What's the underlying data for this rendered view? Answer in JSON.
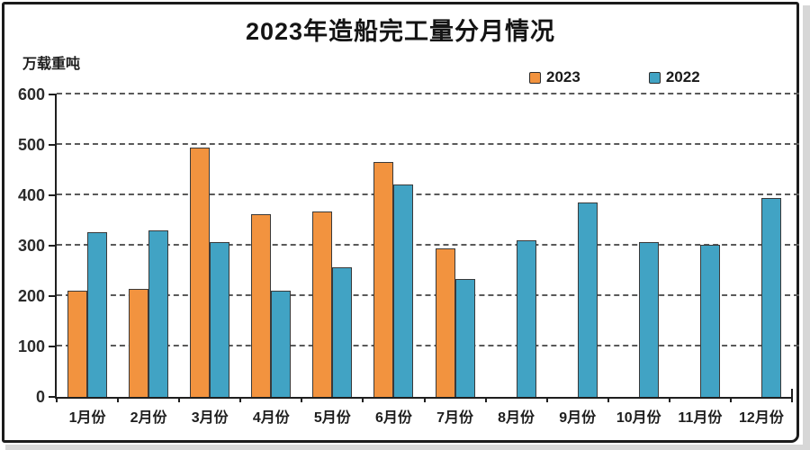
{
  "chart_data": {
    "type": "bar",
    "title": "2023年造船完工量分月情况",
    "ylabel": "万载重吨",
    "xlabel": "",
    "categories": [
      "1月份",
      "2月份",
      "3月份",
      "4月份",
      "5月份",
      "6月份",
      "7月份",
      "8月份",
      "9月份",
      "10月份",
      "11月份",
      "12月份"
    ],
    "series": [
      {
        "name": "2023",
        "color": "#F2933F",
        "values": [
          210,
          214,
          495,
          363,
          368,
          466,
          295,
          null,
          null,
          null,
          null,
          null
        ]
      },
      {
        "name": "2022",
        "color": "#41A3C4",
        "values": [
          326,
          330,
          307,
          211,
          258,
          421,
          234,
          310,
          386,
          307,
          302,
          394
        ]
      }
    ],
    "ylim": [
      0,
      600
    ],
    "yticks": [
      0,
      100,
      200,
      300,
      400,
      500,
      600
    ],
    "grid": "horizontal-dashed",
    "legend_position": "top-right"
  },
  "colors": {
    "bar_2023": "#F2933F",
    "bar_2022": "#41A3C4",
    "bar_border": "#3A3A3A",
    "axis": "#1F1F1F",
    "gridline": "#5A5A5A",
    "frame_border": "#1B1B1B",
    "background": "#FFFFFF",
    "outer_margin": "#D7D7D7",
    "text": "#1E1E1E"
  }
}
